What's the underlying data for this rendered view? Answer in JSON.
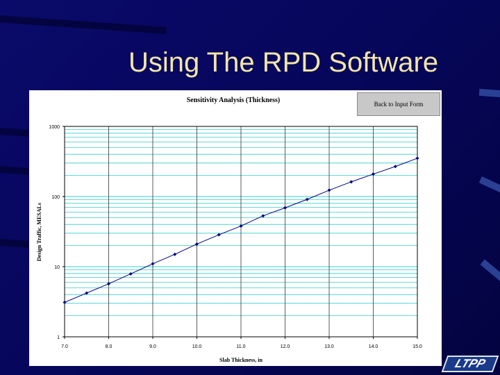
{
  "slide_title": "Using The RPD Software",
  "button_label": "Back to Input Form",
  "logo": "LTPP",
  "chart_data": {
    "type": "line",
    "title": "Sensitivity Analysis (Thickness)",
    "x_label": "Slab Thickness, in",
    "y_label": "Design Traffic, MESALs",
    "x": [
      7,
      7.5,
      8,
      8.5,
      9,
      9.5,
      10,
      10.5,
      11,
      11.5,
      12,
      12.5,
      13,
      13.5,
      14,
      14.5,
      15
    ],
    "values": [
      3.1,
      4.2,
      5.7,
      7.9,
      11,
      15,
      21,
      28.5,
      38,
      53,
      69,
      91,
      123,
      162,
      209,
      268,
      351
    ],
    "color": "#000080",
    "xlim": [
      7,
      15
    ],
    "xticks": [
      {
        "value": 7,
        "label": "7.0"
      },
      {
        "value": 8,
        "label": "8.0"
      },
      {
        "value": 9,
        "label": "9.0"
      },
      {
        "value": 10,
        "label": "10.0"
      },
      {
        "value": 11,
        "label": "11.0"
      },
      {
        "value": 12,
        "label": "12.0"
      },
      {
        "value": 13,
        "label": "13.0"
      },
      {
        "value": 14,
        "label": "14.0"
      },
      {
        "value": 15,
        "label": "15.0"
      }
    ],
    "ylim": [
      1,
      1000
    ],
    "yticks": [
      1,
      10,
      100,
      1000
    ],
    "y_scale": "log",
    "grid": true,
    "minor_grid": true
  }
}
